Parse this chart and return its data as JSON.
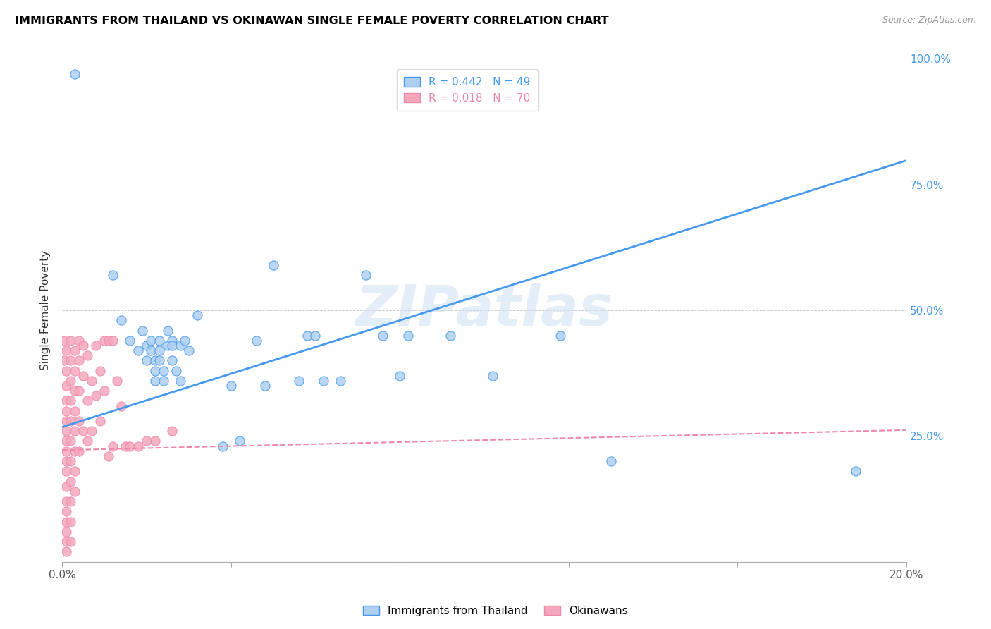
{
  "title": "IMMIGRANTS FROM THAILAND VS OKINAWAN SINGLE FEMALE POVERTY CORRELATION CHART",
  "source": "Source: ZipAtlas.com",
  "ylabel": "Single Female Poverty",
  "x_min": 0.0,
  "x_max": 0.2,
  "y_min": 0.0,
  "y_max": 1.0,
  "x_tick_vals": [
    0.0,
    0.04,
    0.08,
    0.12,
    0.16,
    0.2
  ],
  "x_tick_labels": [
    "0.0%",
    "",
    "",
    "",
    "",
    "20.0%"
  ],
  "y_tick_vals": [
    0.25,
    0.5,
    0.75,
    1.0
  ],
  "y_tick_labels": [
    "25.0%",
    "50.0%",
    "75.0%",
    "100.0%"
  ],
  "thailand_R": 0.442,
  "thailand_N": 49,
  "okinawa_R": 0.018,
  "okinawa_N": 70,
  "thailand_color": "#aecff0",
  "okinawa_color": "#f5a8bc",
  "thailand_line_color": "#4499ee",
  "okinawa_line_color": "#ee88aa",
  "legend_label_thailand": "Immigrants from Thailand",
  "legend_label_okinawa": "Okinawans",
  "watermark": "ZIPatlas",
  "thailand_line": [
    0.0,
    0.268,
    0.2,
    0.798
  ],
  "okinawa_line": [
    0.0,
    0.222,
    0.2,
    0.262
  ],
  "thailand_points": [
    [
      0.003,
      0.97
    ],
    [
      0.012,
      0.57
    ],
    [
      0.014,
      0.48
    ],
    [
      0.016,
      0.44
    ],
    [
      0.018,
      0.42
    ],
    [
      0.019,
      0.46
    ],
    [
      0.02,
      0.43
    ],
    [
      0.02,
      0.4
    ],
    [
      0.021,
      0.44
    ],
    [
      0.021,
      0.42
    ],
    [
      0.022,
      0.4
    ],
    [
      0.022,
      0.38
    ],
    [
      0.022,
      0.36
    ],
    [
      0.023,
      0.44
    ],
    [
      0.023,
      0.42
    ],
    [
      0.023,
      0.4
    ],
    [
      0.024,
      0.38
    ],
    [
      0.024,
      0.36
    ],
    [
      0.025,
      0.46
    ],
    [
      0.025,
      0.43
    ],
    [
      0.026,
      0.44
    ],
    [
      0.026,
      0.43
    ],
    [
      0.026,
      0.4
    ],
    [
      0.027,
      0.38
    ],
    [
      0.028,
      0.36
    ],
    [
      0.028,
      0.43
    ],
    [
      0.029,
      0.44
    ],
    [
      0.03,
      0.42
    ],
    [
      0.032,
      0.49
    ],
    [
      0.038,
      0.23
    ],
    [
      0.04,
      0.35
    ],
    [
      0.042,
      0.24
    ],
    [
      0.046,
      0.44
    ],
    [
      0.048,
      0.35
    ],
    [
      0.05,
      0.59
    ],
    [
      0.056,
      0.36
    ],
    [
      0.058,
      0.45
    ],
    [
      0.06,
      0.45
    ],
    [
      0.062,
      0.36
    ],
    [
      0.066,
      0.36
    ],
    [
      0.072,
      0.57
    ],
    [
      0.076,
      0.45
    ],
    [
      0.08,
      0.37
    ],
    [
      0.082,
      0.45
    ],
    [
      0.092,
      0.45
    ],
    [
      0.102,
      0.37
    ],
    [
      0.118,
      0.45
    ],
    [
      0.13,
      0.2
    ],
    [
      0.188,
      0.18
    ]
  ],
  "okinawa_points": [
    [
      0.0005,
      0.44
    ],
    [
      0.0005,
      0.4
    ],
    [
      0.001,
      0.42
    ],
    [
      0.001,
      0.38
    ],
    [
      0.001,
      0.35
    ],
    [
      0.001,
      0.32
    ],
    [
      0.001,
      0.3
    ],
    [
      0.001,
      0.28
    ],
    [
      0.001,
      0.26
    ],
    [
      0.001,
      0.24
    ],
    [
      0.001,
      0.22
    ],
    [
      0.001,
      0.2
    ],
    [
      0.001,
      0.18
    ],
    [
      0.001,
      0.15
    ],
    [
      0.001,
      0.12
    ],
    [
      0.001,
      0.1
    ],
    [
      0.001,
      0.08
    ],
    [
      0.001,
      0.06
    ],
    [
      0.001,
      0.04
    ],
    [
      0.001,
      0.02
    ],
    [
      0.002,
      0.44
    ],
    [
      0.002,
      0.4
    ],
    [
      0.002,
      0.36
    ],
    [
      0.002,
      0.32
    ],
    [
      0.002,
      0.28
    ],
    [
      0.002,
      0.24
    ],
    [
      0.002,
      0.2
    ],
    [
      0.002,
      0.16
    ],
    [
      0.002,
      0.12
    ],
    [
      0.002,
      0.08
    ],
    [
      0.002,
      0.04
    ],
    [
      0.003,
      0.42
    ],
    [
      0.003,
      0.38
    ],
    [
      0.003,
      0.34
    ],
    [
      0.003,
      0.3
    ],
    [
      0.003,
      0.26
    ],
    [
      0.003,
      0.22
    ],
    [
      0.003,
      0.18
    ],
    [
      0.003,
      0.14
    ],
    [
      0.004,
      0.44
    ],
    [
      0.004,
      0.4
    ],
    [
      0.004,
      0.34
    ],
    [
      0.004,
      0.28
    ],
    [
      0.004,
      0.22
    ],
    [
      0.005,
      0.43
    ],
    [
      0.005,
      0.37
    ],
    [
      0.005,
      0.26
    ],
    [
      0.006,
      0.41
    ],
    [
      0.006,
      0.32
    ],
    [
      0.006,
      0.24
    ],
    [
      0.007,
      0.36
    ],
    [
      0.007,
      0.26
    ],
    [
      0.008,
      0.43
    ],
    [
      0.008,
      0.33
    ],
    [
      0.009,
      0.38
    ],
    [
      0.009,
      0.28
    ],
    [
      0.01,
      0.44
    ],
    [
      0.01,
      0.34
    ],
    [
      0.011,
      0.44
    ],
    [
      0.011,
      0.21
    ],
    [
      0.012,
      0.44
    ],
    [
      0.012,
      0.23
    ],
    [
      0.013,
      0.36
    ],
    [
      0.014,
      0.31
    ],
    [
      0.015,
      0.23
    ],
    [
      0.016,
      0.23
    ],
    [
      0.018,
      0.23
    ],
    [
      0.02,
      0.24
    ],
    [
      0.022,
      0.24
    ],
    [
      0.026,
      0.26
    ]
  ]
}
